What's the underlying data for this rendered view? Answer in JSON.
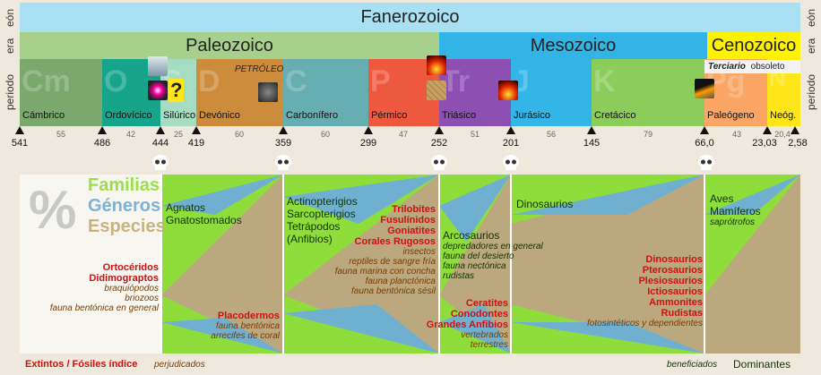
{
  "axis_labels": {
    "eon": "eón",
    "era": "era",
    "periodo": "periodo"
  },
  "eon": {
    "name": "Fanerozoico"
  },
  "eras": [
    {
      "name": "Paleozoico",
      "color": "#a8d08d"
    },
    {
      "name": "Mesozoico",
      "color": "#33b4e6"
    },
    {
      "name": "Cenozoico",
      "color": "#fff200"
    }
  ],
  "periods": [
    {
      "abbr": "Cm",
      "name": "Cámbrico",
      "color": "#7aa86d"
    },
    {
      "abbr": "O",
      "name": "Ordovícico",
      "color": "#16a58a"
    },
    {
      "abbr": "S",
      "name": "Silúrico",
      "color": "#a6dcc1"
    },
    {
      "abbr": "D",
      "name": "Devónico",
      "color": "#cc8c3c"
    },
    {
      "abbr": "C",
      "name": "Carbonífero",
      "color": "#67aeb3"
    },
    {
      "abbr": "P",
      "name": "Pérmico",
      "color": "#ee593e"
    },
    {
      "abbr": "Tr",
      "name": "Triásico",
      "color": "#8e4fb3"
    },
    {
      "abbr": "J",
      "name": "Jurásico",
      "color": "#33b5e7"
    },
    {
      "abbr": "K",
      "name": "Cretácico",
      "color": "#8ccc5a"
    },
    {
      "abbr": "Pg",
      "name": "Paleógeno",
      "color": "#fba664"
    },
    {
      "abbr": "N",
      "name": "Neóg.",
      "color": "#ffe619"
    }
  ],
  "terciario": {
    "label": "Terciario",
    "note": "obsoleto"
  },
  "petroleo": "PETRÓLEO",
  "question_mark": "?",
  "ages": [
    "541",
    "486",
    "444",
    "419",
    "359",
    "299",
    "252",
    "201",
    "145",
    "66,0",
    "23,03",
    "2,58"
  ],
  "durations": [
    "55",
    "42",
    "25",
    "60",
    "60",
    "47",
    "51",
    "56",
    "79",
    "43",
    "20,4"
  ],
  "legend": {
    "symbol": "%",
    "familias": "Familias",
    "generos": "Géneros",
    "especies": "Especies"
  },
  "left_extinct": [
    "Ortocéridos",
    "Didimograptos"
  ],
  "left_affected": [
    "braquiópodos",
    "briozoos",
    "fauna bentónica en general"
  ],
  "block1": {
    "dominant": [
      "Agnatos",
      "Gnatostomados"
    ],
    "extinct": [
      "Placodermos"
    ],
    "affected": [
      "fauna bentónica",
      "arrecifes de coral"
    ]
  },
  "block2": {
    "dominant": [
      "Actinopterigios",
      "Sarcopterigios",
      "Tetrápodos",
      "(Anfibios)"
    ],
    "extinct": [
      "Trilobites",
      "Fusulínidos",
      "Goniatites",
      "Corales Rugosos"
    ],
    "affected": [
      "insectos",
      "reptiles de sangre fría",
      "fauna marina con concha",
      "fauna planctónica",
      "fauna bentónica sésil"
    ]
  },
  "block3": {
    "dominant": [
      "Arcosaurios"
    ],
    "benefited": [
      "depredadores en general",
      "fauna del desierto",
      "fauna nectónica",
      "rudistas"
    ],
    "extinct": [
      "Ceratites",
      "Conodontes",
      "Grandes Anfibios"
    ],
    "affected": [
      "vertebrados terrestres"
    ]
  },
  "block4": {
    "dominant": [
      "Dinosaurios"
    ],
    "extinct": [
      "Dinosaurios",
      "Pterosaurios",
      "Plesiosaurios",
      "Ictiosaurios",
      "Ammonites",
      "Rudistas"
    ],
    "affected": [
      "fotosintéticos y dependientes"
    ]
  },
  "block5": {
    "dominant": [
      "Aves",
      "Mamíferos"
    ],
    "benefited": [
      "saprótrofos"
    ]
  },
  "footer": {
    "extinct": "Extintos / Fósiles índice",
    "affected": "perjudicados",
    "benefited": "beneficiados",
    "dominant": "Dominantes"
  }
}
